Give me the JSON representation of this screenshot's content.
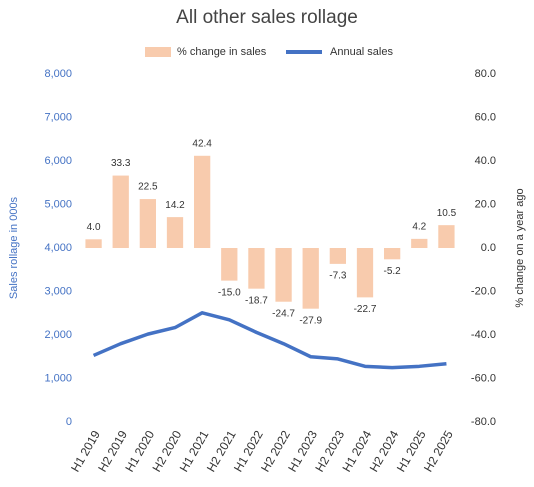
{
  "chart_data": {
    "type": "bar_line",
    "title": "All other sales rollage",
    "categories": [
      "H1 2019",
      "H2 2019",
      "H1 2020",
      "H2 2020",
      "H1 2021",
      "H2 2021",
      "H1 2022",
      "H2 2022",
      "H1 2023",
      "H2 2023",
      "H1 2024",
      "H2 2024",
      "H1 2025",
      "H2 2025"
    ],
    "series": [
      {
        "name": "% change in sales",
        "type": "bar",
        "axis": "y2",
        "color": "#f8cbad",
        "values": [
          4,
          33.3,
          22.5,
          14.2,
          42.4,
          -15,
          -18.7,
          -24.7,
          -27.9,
          -7.3,
          -22.7,
          -5.2,
          4.2,
          10.5
        ],
        "value_labels": [
          "4.0",
          "33.3",
          "22.5",
          "14.2",
          "42.4",
          "-15.0",
          "-18.7",
          "-24.7",
          "-27.9",
          "-7.3",
          "-22.7",
          "-5.2",
          "4.2",
          "10.5"
        ]
      },
      {
        "name": "Annual sales",
        "type": "line",
        "axis": "y",
        "color": "#4472c4",
        "values": [
          1530,
          1800,
          2020,
          2170,
          2510,
          2350,
          2060,
          1800,
          1500,
          1450,
          1280,
          1250,
          1280,
          1340
        ]
      }
    ],
    "y_label": "Sales rollage in 000s",
    "y2_label": "% change on a year ago",
    "ylim": [
      0,
      8000
    ],
    "yticks": [
      0,
      {
        "value": 1000,
        "label": "1,000"
      },
      {
        "value": 2000,
        "label": "2,000"
      },
      {
        "value": 3000,
        "label": "3,000"
      },
      {
        "value": 4000,
        "label": "4,000"
      },
      {
        "value": 5000,
        "label": "5,000"
      },
      {
        "value": 6000,
        "label": "6,000"
      },
      {
        "value": 7000,
        "label": "7,000"
      },
      {
        "value": 8000,
        "label": "8,000"
      }
    ],
    "y2lim": [
      -80,
      80
    ],
    "y2ticks": [
      {
        "value": -80,
        "label": "-80.0"
      },
      {
        "value": -60,
        "label": "-60.0"
      },
      {
        "value": -40,
        "label": "-40.0"
      },
      {
        "value": -20,
        "label": "-20.0"
      },
      {
        "value": 0,
        "label": "0.0"
      },
      {
        "value": 20,
        "label": "20.0"
      },
      {
        "value": 40,
        "label": "40.0"
      },
      {
        "value": 60,
        "label": "60.0"
      },
      {
        "value": 80,
        "label": "80.0"
      }
    ],
    "legend": "top"
  }
}
